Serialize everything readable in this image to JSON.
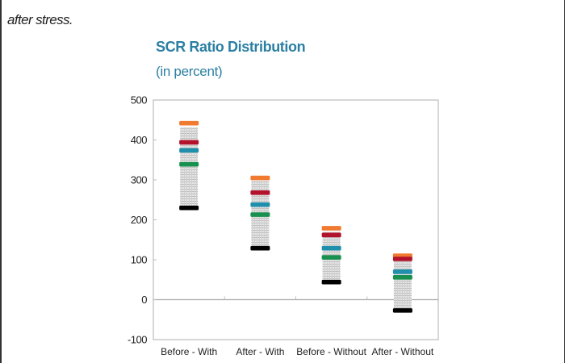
{
  "document": {
    "cropped_line": "",
    "intro_text": "after stress."
  },
  "chart_data": {
    "type": "range-marker",
    "title": "SCR Ratio Distribution",
    "subtitle": "(in percent)",
    "xlabel": "",
    "ylabel": "",
    "ylim": [
      -100,
      500
    ],
    "yticks": [
      -100,
      0,
      100,
      200,
      300,
      400,
      500
    ],
    "grid": false,
    "legend": "none",
    "categories": [
      "Before - With",
      "After - With",
      "Before - Without",
      "After - Without"
    ],
    "range": {
      "name": "distribution-range",
      "color": "#d2d2d2",
      "low": [
        230,
        129,
        44,
        -27
      ],
      "high": [
        432,
        298,
        170,
        103
      ]
    },
    "series": [
      {
        "name": "orange-marker",
        "color": "#f07a30",
        "values": [
          442,
          305,
          179,
          110
        ]
      },
      {
        "name": "red-marker",
        "color": "#b3122d",
        "values": [
          394,
          268,
          162,
          102
        ]
      },
      {
        "name": "teal-marker",
        "color": "#1f8fab",
        "values": [
          374,
          238,
          129,
          70
        ]
      },
      {
        "name": "green-marker",
        "color": "#18904f",
        "values": [
          339,
          213,
          106,
          56
        ]
      },
      {
        "name": "black-marker",
        "color": "#000000",
        "values": [
          230,
          129,
          44,
          -27
        ]
      }
    ]
  }
}
